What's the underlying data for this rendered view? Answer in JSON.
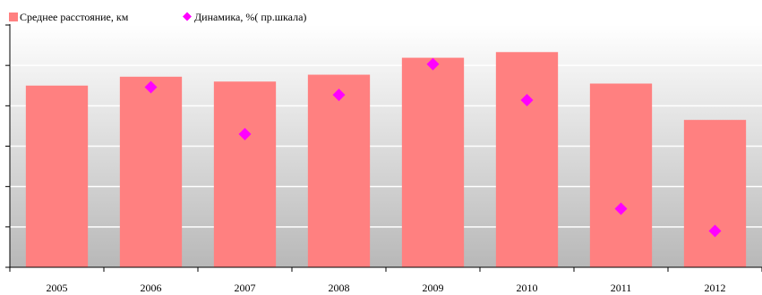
{
  "chart_data": {
    "type": "bar",
    "categories": [
      "2005",
      "2006",
      "2007",
      "2008",
      "2009",
      "2010",
      "2011",
      "2012"
    ],
    "series": [
      {
        "name": "Среднее расстояние, км",
        "kind": "bar",
        "axis": "left",
        "color": "#ff8080",
        "values": [
          4.5,
          4.72,
          4.6,
          4.77,
          5.19,
          5.33,
          4.55,
          3.65
        ]
      },
      {
        "name": "Динамика, %( пр.шкала)",
        "kind": "marker",
        "axis": "right",
        "color": "#ff00ff",
        "marker": "diamond",
        "values": [
          null,
          4.46,
          3.3,
          4.27,
          5.03,
          4.14,
          1.45,
          0.9
        ]
      }
    ],
    "ylim": [
      0,
      6
    ],
    "y2lim": [
      0,
      6
    ],
    "y_ticks_labeled": false,
    "grid": true,
    "legend": {
      "position": "top-left"
    },
    "background": "gradient-gray"
  }
}
